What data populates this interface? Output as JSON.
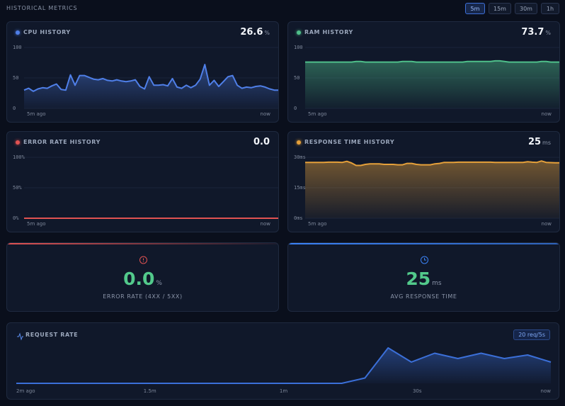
{
  "header": {
    "title": "HISTORICAL METRICS",
    "ranges": [
      "5m",
      "15m",
      "30m",
      "1h"
    ],
    "active_range": "5m"
  },
  "panels": [
    {
      "title": "CPU HISTORY",
      "value": "26.6",
      "unit": "%",
      "color": "#4f7fe8",
      "ylim": [
        0,
        100
      ],
      "yticks": [
        0,
        50,
        100
      ],
      "x_labels": [
        "5m ago",
        "now"
      ],
      "values": [
        30,
        33,
        28,
        32,
        34,
        33,
        37,
        40,
        31,
        30,
        55,
        38,
        54,
        54,
        51,
        48,
        47,
        49,
        46,
        45,
        47,
        45,
        44,
        45,
        47,
        36,
        32,
        52,
        38,
        38,
        39,
        37,
        49,
        35,
        33,
        38,
        34,
        38,
        48,
        72,
        38,
        46,
        36,
        44,
        52,
        54,
        38,
        33,
        35,
        34,
        36,
        37,
        35,
        32,
        30,
        30
      ]
    },
    {
      "title": "RAM HISTORY",
      "value": "73.7",
      "unit": "%",
      "color": "#4fbf8a",
      "ylim": [
        0,
        100
      ],
      "yticks": [
        0,
        50,
        100
      ],
      "x_labels": [
        "5m ago",
        "now"
      ],
      "values": [
        76,
        76,
        76,
        76,
        76,
        76,
        76,
        76,
        76,
        76,
        76,
        77,
        77,
        76,
        76,
        76,
        76,
        76,
        76,
        76,
        76,
        77,
        77,
        77,
        76,
        76,
        76,
        76,
        76,
        76,
        76,
        76,
        76,
        76,
        76,
        77,
        77,
        77,
        77,
        77,
        77,
        78,
        78,
        77,
        76,
        76,
        76,
        76,
        76,
        76,
        76,
        77,
        77,
        76,
        76,
        76
      ]
    },
    {
      "title": "ERROR RATE HISTORY",
      "value": "0.0",
      "unit": "",
      "color": "#e05252",
      "ylim": [
        0,
        100
      ],
      "yticks": [
        {
          "value": 0,
          "label": "0%"
        },
        {
          "value": 50,
          "label": "50%"
        },
        {
          "value": 100,
          "label": "100%"
        }
      ],
      "x_labels": [
        "5m ago",
        "now"
      ],
      "values": [
        0,
        0,
        0,
        0,
        0,
        0,
        0,
        0,
        0,
        0,
        0,
        0,
        0,
        0,
        0,
        0,
        0,
        0,
        0,
        0
      ]
    },
    {
      "title": "RESPONSE TIME HISTORY",
      "value": "25",
      "unit": "ms",
      "color": "#e5a03a",
      "ylim": [
        0,
        30
      ],
      "yticks": [
        {
          "value": 0,
          "label": "0ms"
        },
        {
          "value": 15,
          "label": "15ms"
        },
        {
          "value": 30,
          "label": "30ms"
        }
      ],
      "x_labels": [
        "5m ago",
        "now"
      ],
      "values": [
        27.5,
        27.5,
        27.5,
        27.5,
        27.5,
        27.6,
        27.6,
        27.6,
        27.5,
        28,
        27.2,
        26,
        26,
        26.5,
        26.8,
        26.8,
        26.8,
        26.5,
        26.5,
        26.5,
        26.3,
        26.3,
        27,
        27,
        26.5,
        26.3,
        26.3,
        26.3,
        26.8,
        27,
        27.5,
        27.5,
        27.5,
        27.6,
        27.6,
        27.6,
        27.6,
        27.6,
        27.6,
        27.6,
        27.6,
        27.5,
        27.5,
        27.5,
        27.5,
        27.5,
        27.5,
        27.5,
        27.8,
        27.6,
        27.5,
        28.2,
        27.5,
        27.4,
        27.3,
        27.3
      ]
    }
  ],
  "stats": [
    {
      "value": "0.0",
      "unit": "%",
      "label": "ERROR RATE (4XX / 5XX)",
      "color": "#e05252"
    },
    {
      "value": "25",
      "unit": "ms",
      "label": "AVG RESPONSE TIME",
      "color": "#3b82f6"
    }
  ],
  "request_rate": {
    "title": "REQUEST RATE",
    "badge": "20 req/5s",
    "color": "#3b6fd8",
    "ylim": [
      0,
      22
    ],
    "x_labels": [
      "2m ago",
      "1.5m",
      "1m",
      "30s",
      "now"
    ],
    "values": [
      0,
      0,
      0,
      0,
      0,
      0,
      0,
      0,
      0,
      0,
      0,
      0,
      0,
      0,
      0,
      3,
      20,
      12,
      17,
      14,
      17,
      14,
      16,
      12
    ]
  }
}
